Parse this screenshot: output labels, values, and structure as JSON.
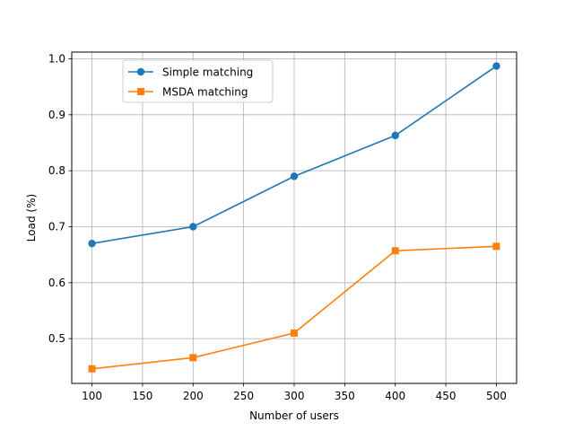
{
  "chart_data": {
    "type": "line",
    "title": "",
    "xlabel": "Number of users",
    "ylabel": "Load (%)",
    "x": [
      100,
      200,
      300,
      400,
      500
    ],
    "xlim": [
      80,
      520
    ],
    "ylim": [
      0.42,
      1.012
    ],
    "xticks": [
      100,
      150,
      200,
      250,
      300,
      350,
      400,
      450,
      500
    ],
    "yticks": [
      0.5,
      0.6,
      0.7,
      0.8,
      0.9,
      1.0
    ],
    "grid": true,
    "legend_position": "upper-left",
    "series": [
      {
        "name": "Simple matching",
        "values": [
          0.67,
          0.7,
          0.79,
          0.863,
          0.987
        ],
        "color": "#1f77b4",
        "marker": "circle"
      },
      {
        "name": "MSDA matching",
        "values": [
          0.446,
          0.466,
          0.51,
          0.657,
          0.665
        ],
        "color": "#ff7f0e",
        "marker": "square"
      }
    ]
  }
}
